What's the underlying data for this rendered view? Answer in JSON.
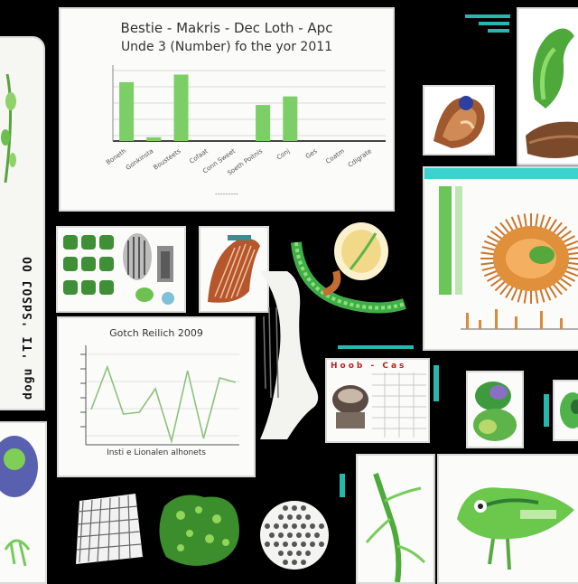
{
  "top_chart": {
    "title_line1": "Bestie - Makris - Dec Loth - Apc",
    "title_line2": "Unde 3 (Number) fo the yor 2011",
    "xlabel": "---------",
    "tick_labels": [
      "Boneth",
      "Gonkinsta",
      "Bousteets",
      "Cofaat",
      "Conn Sweet",
      "Soeth Poitnis",
      "Conj",
      "Ges",
      "Coatm",
      "Cdigrate"
    ]
  },
  "line_chart": {
    "title": "Gotch Reilich 2009",
    "xlabel": "Insti e Lionalen alhonets"
  },
  "left_strip": {
    "text": "dogu 'TI 'SdSOJ OO"
  },
  "spreadsheet_header": "Hoob - Cas",
  "colors": {
    "green": "#7ccf66",
    "teal": "#25b8b0",
    "background": "#000000"
  },
  "chart_data": [
    {
      "type": "bar",
      "title": "Bestie - Makris - Dec Loth - Apc",
      "subtitle": "Unde 3 (Number) fo the yor 2011",
      "categories": [
        "Boneth",
        "Gonkinsta",
        "Bousteets",
        "Cofaat",
        "Conn Sweet",
        "Soeth Poitnis",
        "Conj",
        "Ges",
        "Coatm",
        "Cdigrate"
      ],
      "values": [
        62,
        4,
        70,
        0,
        0,
        38,
        47,
        0,
        0,
        0
      ],
      "ylim": [
        0,
        80
      ],
      "grid": true,
      "legend": "none"
    },
    {
      "type": "line",
      "title": "Gotch Reilich 2009",
      "xlabel": "Insti e Lionalen alhonets",
      "series": [
        {
          "values": [
            35,
            82,
            30,
            32,
            58,
            0,
            78,
            3,
            70,
            65
          ]
        }
      ],
      "ylim": [
        0,
        100
      ],
      "grid": true,
      "legend": "none"
    }
  ]
}
